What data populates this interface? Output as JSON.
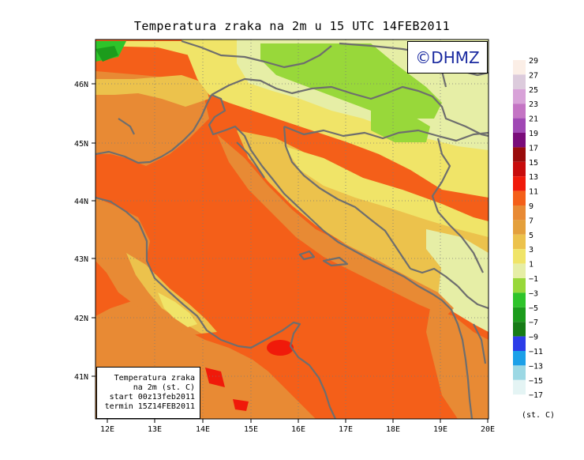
{
  "title": "Temperatura zraka na 2m u 15 UTC 14FEB2011",
  "logo": "©DHMZ",
  "info_box": {
    "line1": "Temperatura zraka",
    "line2": "na 2m (st. C)",
    "line3": "start 00z13feb2011",
    "line4": "termin 15Z14FEB2011"
  },
  "lat_labels": [
    "46N",
    "45N",
    "44N",
    "43N",
    "42N",
    "41N"
  ],
  "lon_labels": [
    "12E",
    "13E",
    "14E",
    "15E",
    "16E",
    "17E",
    "18E",
    "19E",
    "20E"
  ],
  "colorbar": {
    "labels": [
      "29",
      "27",
      "25",
      "23",
      "21",
      "19",
      "17",
      "15",
      "13",
      "11",
      "9",
      "7",
      "5",
      "3",
      "1",
      "−1",
      "−3",
      "−5",
      "−7",
      "−9",
      "−11",
      "−13",
      "−15",
      "−17"
    ],
    "colors": [
      "#fbeee6",
      "#dccbdc",
      "#d8a2d8",
      "#c474c4",
      "#a048b4",
      "#7a0c7a",
      "#9a0c0c",
      "#c80c0c",
      "#f01a0a",
      "#f45f19",
      "#e88a34",
      "#e4a03c",
      "#ecc24c",
      "#f0e468",
      "#e6eea6",
      "#98d83a",
      "#2ec42a",
      "#1c9c1c",
      "#167c16",
      "#2c3ce8",
      "#1ca0e8",
      "#9cd8e4",
      "#e4f4f4"
    ],
    "unit": "(st. C)"
  }
}
